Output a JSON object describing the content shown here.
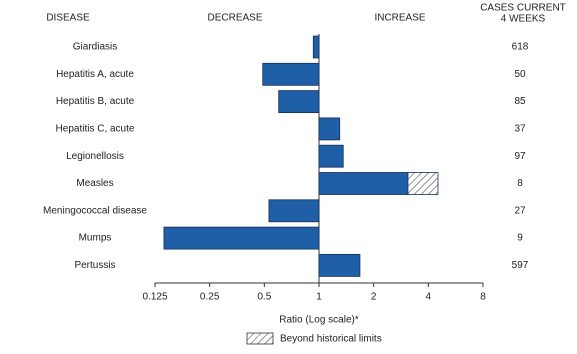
{
  "chart_data": {
    "type": "bar",
    "orientation": "horizontal",
    "log_scale": true,
    "log_base": 2,
    "category_title": "DISEASE",
    "decrease_label": "DECREASE",
    "increase_label": "INCREASE",
    "value_column_title": [
      "CASES CURRENT",
      "4 WEEKS"
    ],
    "categories": [
      "Giardiasis",
      "Hepatitis A, acute",
      "Hepatitis B, acute",
      "Hepatitis C, acute",
      "Legionellosis",
      "Measles",
      "Meningococcal disease",
      "Mumps",
      "Pertussis"
    ],
    "values": [
      0.93,
      0.49,
      0.6,
      1.3,
      1.36,
      4.52,
      0.53,
      0.14,
      1.68
    ],
    "historical_limits": [
      null,
      null,
      null,
      null,
      null,
      3.09,
      null,
      null,
      null
    ],
    "cases": [
      618,
      50,
      85,
      37,
      97,
      8,
      27,
      9,
      597
    ],
    "color": "#1f5fa8",
    "xlim": [
      0.125,
      8
    ],
    "xticks": [
      0.125,
      0.25,
      0.5,
      1,
      2,
      4,
      8
    ],
    "xlabel": "Ratio (Log scale)*",
    "legend": "Beyond historical limits"
  }
}
